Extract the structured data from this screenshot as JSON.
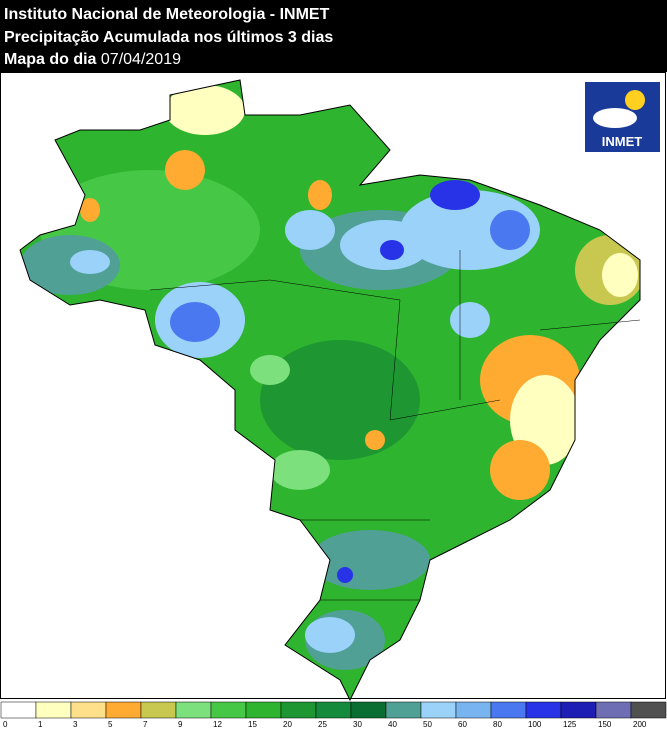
{
  "header": {
    "line1": "Instituto Nacional de Meteorologia - INMET",
    "line2": "Precipitação Acumulada nos últimos 3 dias",
    "line3_label": "Mapa do dia",
    "date": "07/04/2019"
  },
  "logo": {
    "text": "INMET"
  },
  "legend": {
    "labels": [
      0,
      1,
      3,
      5,
      7,
      9,
      12,
      15,
      20,
      25,
      30,
      40,
      50,
      60,
      80,
      100,
      125,
      150,
      200
    ],
    "colors": [
      "#ffffff",
      "#ffffc0",
      "#ffe08a",
      "#ffaa30",
      "#c8c850",
      "#7ce07c",
      "#46c846",
      "#2eb42e",
      "#1e9632",
      "#148a3c",
      "#0a6e32",
      "#50a096",
      "#9ad2fa",
      "#78b4f0",
      "#4a78f0",
      "#2832e6",
      "#1e1eb4",
      "#6e6eb4",
      "#505050"
    ]
  }
}
